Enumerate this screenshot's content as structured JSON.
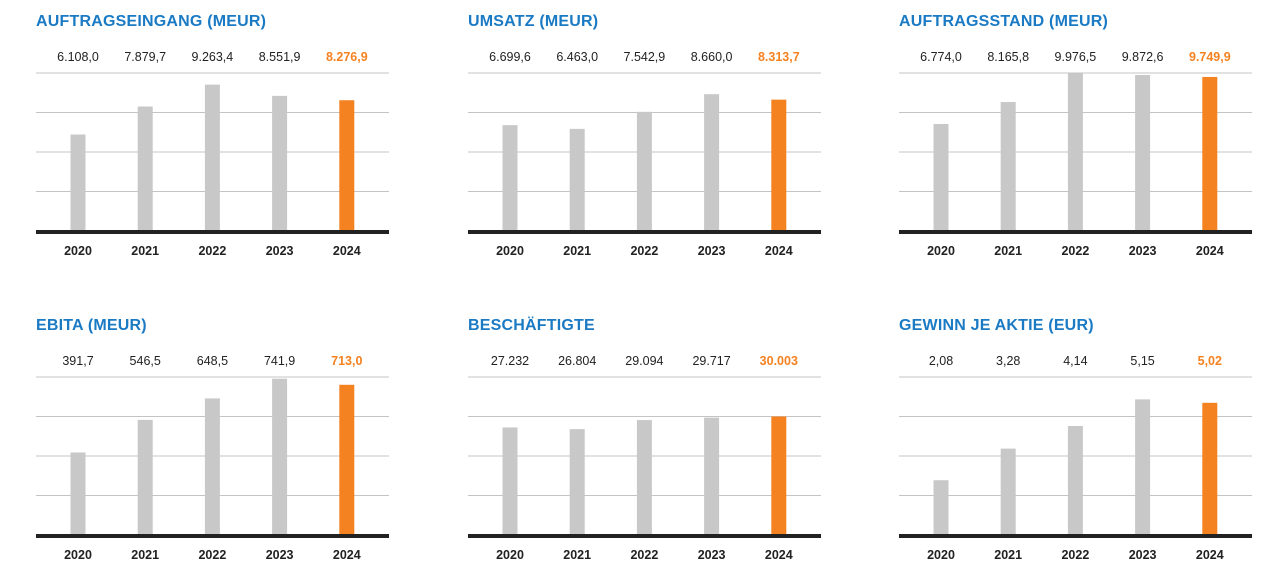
{
  "highlight_color": "#f58220",
  "base_color": "#c8c8c8",
  "text_color": "#222222",
  "title_color": "#1a7ac4",
  "chart_data": [
    {
      "type": "bar",
      "title": "AUFTRAGSEINGANG (MEUR)",
      "categories": [
        "2020",
        "2021",
        "2022",
        "2023",
        "2024"
      ],
      "values": [
        6108.0,
        7879.7,
        9263.4,
        8551.9,
        8276.9
      ],
      "value_labels": [
        "6.108,0",
        "7.879,7",
        "9.263,4",
        "8.551,9",
        "8.276,9"
      ],
      "highlight_index": 4,
      "ylim": [
        0,
        10000
      ],
      "grid": true
    },
    {
      "type": "bar",
      "title": "UMSATZ (MEUR)",
      "categories": [
        "2020",
        "2021",
        "2022",
        "2023",
        "2024"
      ],
      "values": [
        6699.6,
        6463.0,
        7542.9,
        8660.0,
        8313.7
      ],
      "value_labels": [
        "6.699,6",
        "6.463,0",
        "7.542,9",
        "8.660,0",
        "8.313,7"
      ],
      "highlight_index": 4,
      "ylim": [
        0,
        10000
      ],
      "grid": true
    },
    {
      "type": "bar",
      "title": "AUFTRAGSSTAND (MEUR)",
      "categories": [
        "2020",
        "2021",
        "2022",
        "2023",
        "2024"
      ],
      "values": [
        6774.0,
        8165.8,
        9976.5,
        9872.6,
        9749.9
      ],
      "value_labels": [
        "6.774,0",
        "8.165,8",
        "9.976,5",
        "9.872,6",
        "9.749,9"
      ],
      "highlight_index": 4,
      "ylim": [
        0,
        10000
      ],
      "grid": true
    },
    {
      "type": "bar",
      "title": "EBITA (MEUR)",
      "categories": [
        "2020",
        "2021",
        "2022",
        "2023",
        "2024"
      ],
      "values": [
        391.7,
        546.5,
        648.5,
        741.9,
        713.0
      ],
      "value_labels": [
        "391,7",
        "546,5",
        "648,5",
        "741,9",
        "713,0"
      ],
      "highlight_index": 4,
      "ylim": [
        0,
        750
      ],
      "grid": true
    },
    {
      "type": "bar",
      "title": "BESCHÄFTIGTE",
      "categories": [
        "2020",
        "2021",
        "2022",
        "2023",
        "2024"
      ],
      "values": [
        27232,
        26804,
        29094,
        29717,
        30003
      ],
      "value_labels": [
        "27.232",
        "26.804",
        "29.094",
        "29.717",
        "30.003"
      ],
      "highlight_index": 4,
      "ylim": [
        0,
        40000
      ],
      "grid": true
    },
    {
      "type": "bar",
      "title": "GEWINN JE AKTIE (EUR)",
      "categories": [
        "2020",
        "2021",
        "2022",
        "2023",
        "2024"
      ],
      "values": [
        2.08,
        3.28,
        4.14,
        5.15,
        5.02
      ],
      "value_labels": [
        "2,08",
        "3,28",
        "4,14",
        "5,15",
        "5,02"
      ],
      "highlight_index": 4,
      "ylim": [
        0,
        6
      ],
      "grid": true
    }
  ]
}
